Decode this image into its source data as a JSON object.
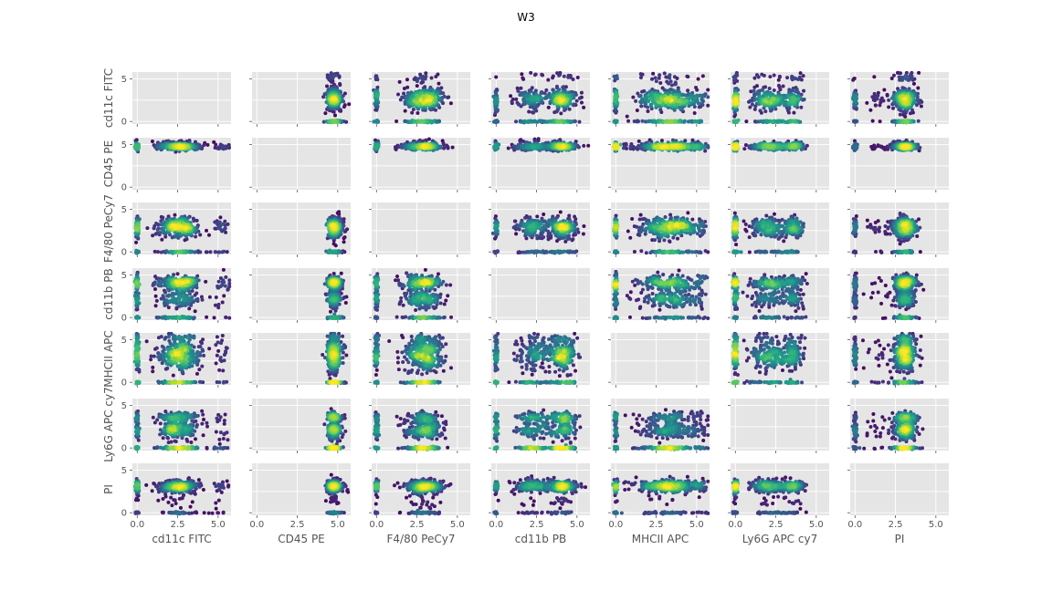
{
  "chart_data": {
    "type": "scatter",
    "title": "W3",
    "variables": [
      "cd11c FITC",
      "CD45 PE",
      "F4/80 PeCy7",
      "cd11b PB",
      "MHCII APC",
      "Ly6G APC cy7",
      "PI"
    ],
    "xlim": [
      -0.3,
      5.8
    ],
    "ylim": [
      -0.3,
      5.8
    ],
    "ticks": [
      0,
      2.5,
      5
    ],
    "tick_labels_x": [
      "0.0",
      "2.5",
      "5.0"
    ],
    "tick_labels_y": [
      "0",
      "5"
    ],
    "grid": true,
    "diagonal_empty": true,
    "colormap": "viridis",
    "background_color": "#e5e5e5",
    "grid_color": "#ffffff",
    "distributions": [
      {
        "name": "cd11c FITC",
        "clusters": [
          {
            "m": 2.6,
            "s": 0.65,
            "w": 0.72
          },
          {
            "m": 0.0,
            "s": 0.05,
            "w": 0.22
          },
          {
            "m": 5.2,
            "s": 0.25,
            "w": 0.06
          }
        ]
      },
      {
        "name": "CD45 PE",
        "clusters": [
          {
            "m": 4.75,
            "s": 0.18,
            "w": 0.96
          },
          {
            "m": 5.3,
            "s": 0.15,
            "w": 0.04
          }
        ]
      },
      {
        "name": "F4/80 PeCy7",
        "clusters": [
          {
            "m": 3.0,
            "s": 0.55,
            "w": 0.7
          },
          {
            "m": 0.0,
            "s": 0.05,
            "w": 0.2
          },
          {
            "m": 2.2,
            "s": 0.5,
            "w": 0.1
          }
        ]
      },
      {
        "name": "cd11b PB",
        "clusters": [
          {
            "m": 4.1,
            "s": 0.45,
            "w": 0.5
          },
          {
            "m": 2.2,
            "s": 0.55,
            "w": 0.35
          },
          {
            "m": 0.0,
            "s": 0.05,
            "w": 0.15
          }
        ]
      },
      {
        "name": "MHCII APC",
        "clusters": [
          {
            "m": 3.3,
            "s": 1.0,
            "w": 0.75
          },
          {
            "m": 0.0,
            "s": 0.05,
            "w": 0.2
          },
          {
            "m": 5.2,
            "s": 0.2,
            "w": 0.05
          }
        ]
      },
      {
        "name": "Ly6G APC cy7",
        "clusters": [
          {
            "m": 2.1,
            "s": 0.6,
            "w": 0.45
          },
          {
            "m": 0.0,
            "s": 0.06,
            "w": 0.3
          },
          {
            "m": 3.6,
            "s": 0.3,
            "w": 0.25
          }
        ]
      },
      {
        "name": "PI",
        "clusters": [
          {
            "m": 3.1,
            "s": 0.35,
            "w": 0.8
          },
          {
            "m": 0.0,
            "s": 0.05,
            "w": 0.15
          },
          {
            "m": 1.5,
            "s": 0.5,
            "w": 0.05
          }
        ]
      }
    ]
  }
}
